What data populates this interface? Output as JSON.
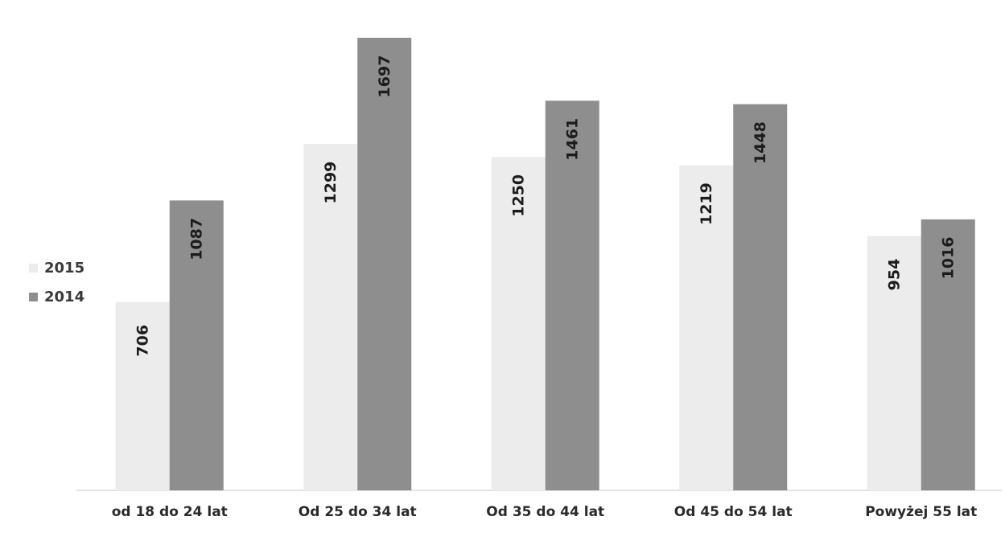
{
  "chart_data": {
    "type": "bar",
    "categories": [
      "od 18 do 24 lat",
      "Od 25 do 34 lat",
      "Od 35 do 44 lat",
      "Od 45 do 54 lat",
      "Powyżej 55 lat"
    ],
    "series": [
      {
        "name": "2015",
        "values": [
          706,
          1299,
          1250,
          1219,
          954
        ],
        "color": "#ececec"
      },
      {
        "name": "2014",
        "values": [
          1087,
          1697,
          1461,
          1448,
          1016
        ],
        "color": "#8e8e8e"
      }
    ],
    "data_labels": "inside-bar, rotated vertical",
    "ylim": [
      0,
      1697
    ],
    "grid": false,
    "legend_position": "left"
  }
}
